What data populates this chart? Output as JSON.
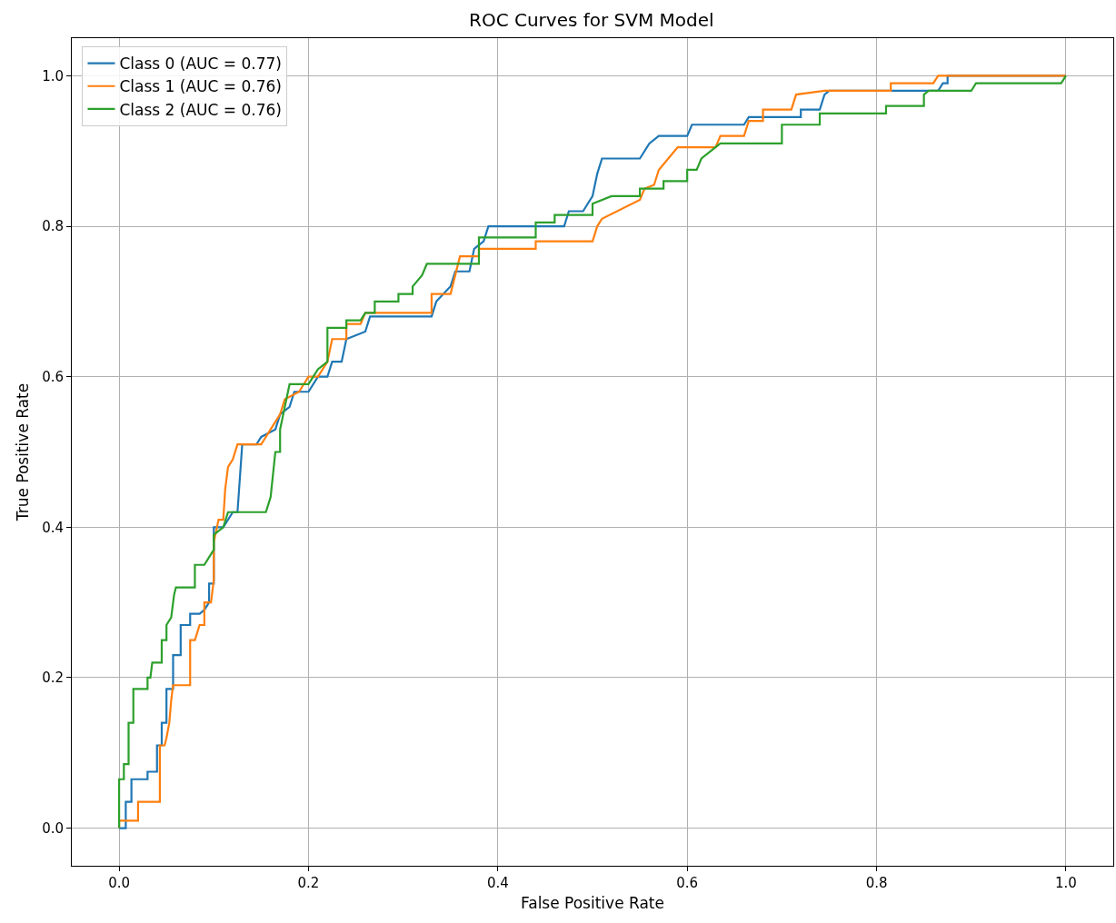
{
  "chart_data": {
    "type": "line",
    "title": "ROC Curves for SVM Model",
    "xlabel": "False Positive Rate",
    "ylabel": "True Positive Rate",
    "xlim": [
      -0.05,
      1.05
    ],
    "ylim": [
      -0.05,
      1.05
    ],
    "xticks": [
      {
        "value": 0,
        "label": "0.0"
      },
      0.2,
      0.4,
      0.6,
      0.8,
      {
        "value": 1,
        "label": "1.0"
      }
    ],
    "yticks": [
      {
        "value": 0,
        "label": "0.0"
      },
      0.2,
      0.4,
      0.6,
      0.8,
      {
        "value": 1,
        "label": "1.0"
      }
    ],
    "grid": true,
    "legend": "top left",
    "line_style": "solid",
    "marker": "none",
    "series": [
      {
        "name": "Class 0 (AUC = 0.77)",
        "color": "#1f77b4",
        "x": [
          0,
          0.007,
          0.007,
          0.013,
          0.013,
          0.03,
          0.03,
          0.04,
          0.04,
          0.045,
          0.045,
          0.05,
          0.05,
          0.057,
          0.057,
          0.065,
          0.065,
          0.075,
          0.075,
          0.085,
          0.09,
          0.095,
          0.095,
          0.1,
          0.1,
          0.11,
          0.12,
          0.125,
          0.13,
          0.145,
          0.15,
          0.165,
          0.17,
          0.18,
          0.185,
          0.2,
          0.21,
          0.22,
          0.225,
          0.235,
          0.24,
          0.26,
          0.265,
          0.33,
          0.335,
          0.35,
          0.355,
          0.37,
          0.375,
          0.385,
          0.39,
          0.47,
          0.475,
          0.49,
          0.5,
          0.505,
          0.51,
          0.55,
          0.56,
          0.57,
          0.6,
          0.605,
          0.66,
          0.665,
          0.72,
          0.72,
          0.74,
          0.745,
          0.75,
          0.865,
          0.87,
          0.875,
          0.875,
          1.0
        ],
        "values": [
          0,
          0,
          0.035,
          0.035,
          0.065,
          0.065,
          0.075,
          0.075,
          0.11,
          0.11,
          0.14,
          0.14,
          0.185,
          0.185,
          0.23,
          0.23,
          0.27,
          0.27,
          0.285,
          0.285,
          0.29,
          0.3,
          0.325,
          0.325,
          0.4,
          0.4,
          0.42,
          0.42,
          0.51,
          0.51,
          0.52,
          0.53,
          0.55,
          0.56,
          0.58,
          0.58,
          0.6,
          0.6,
          0.62,
          0.62,
          0.65,
          0.66,
          0.68,
          0.68,
          0.7,
          0.72,
          0.74,
          0.74,
          0.77,
          0.78,
          0.8,
          0.8,
          0.82,
          0.82,
          0.84,
          0.87,
          0.89,
          0.89,
          0.91,
          0.92,
          0.92,
          0.935,
          0.935,
          0.945,
          0.945,
          0.955,
          0.955,
          0.975,
          0.98,
          0.98,
          0.99,
          0.99,
          1.0,
          1.0
        ]
      },
      {
        "name": "Class 1 (AUC = 0.76)",
        "color": "#ff7f0e",
        "x": [
          0,
          0,
          0.02,
          0.02,
          0.043,
          0.043,
          0.048,
          0.05,
          0.053,
          0.055,
          0.057,
          0.075,
          0.075,
          0.08,
          0.085,
          0.09,
          0.09,
          0.097,
          0.1,
          0.1,
          0.105,
          0.11,
          0.112,
          0.115,
          0.12,
          0.125,
          0.15,
          0.16,
          0.17,
          0.175,
          0.19,
          0.2,
          0.21,
          0.22,
          0.225,
          0.24,
          0.24,
          0.255,
          0.26,
          0.33,
          0.33,
          0.35,
          0.355,
          0.36,
          0.38,
          0.38,
          0.44,
          0.44,
          0.5,
          0.505,
          0.51,
          0.55,
          0.555,
          0.565,
          0.57,
          0.58,
          0.59,
          0.63,
          0.635,
          0.66,
          0.665,
          0.68,
          0.68,
          0.71,
          0.715,
          0.745,
          0.815,
          0.815,
          0.86,
          0.865,
          1.0
        ],
        "values": [
          0,
          0.01,
          0.01,
          0.035,
          0.035,
          0.11,
          0.11,
          0.12,
          0.14,
          0.17,
          0.19,
          0.19,
          0.25,
          0.25,
          0.27,
          0.27,
          0.3,
          0.3,
          0.33,
          0.38,
          0.41,
          0.41,
          0.45,
          0.48,
          0.49,
          0.51,
          0.51,
          0.53,
          0.55,
          0.57,
          0.58,
          0.6,
          0.6,
          0.62,
          0.65,
          0.65,
          0.67,
          0.67,
          0.685,
          0.685,
          0.71,
          0.71,
          0.735,
          0.76,
          0.76,
          0.77,
          0.77,
          0.78,
          0.78,
          0.8,
          0.81,
          0.835,
          0.85,
          0.855,
          0.875,
          0.89,
          0.905,
          0.905,
          0.92,
          0.92,
          0.94,
          0.94,
          0.955,
          0.955,
          0.975,
          0.98,
          0.98,
          0.99,
          0.99,
          1.0,
          1.0
        ]
      },
      {
        "name": "Class 2 (AUC = 0.76)",
        "color": "#2ca02c",
        "x": [
          0,
          0,
          0.005,
          0.005,
          0.01,
          0.01,
          0.015,
          0.015,
          0.03,
          0.03,
          0.033,
          0.035,
          0.045,
          0.045,
          0.05,
          0.05,
          0.055,
          0.058,
          0.06,
          0.08,
          0.08,
          0.09,
          0.095,
          0.1,
          0.1,
          0.11,
          0.115,
          0.155,
          0.16,
          0.165,
          0.17,
          0.17,
          0.175,
          0.18,
          0.2,
          0.205,
          0.21,
          0.22,
          0.22,
          0.24,
          0.24,
          0.255,
          0.26,
          0.27,
          0.27,
          0.295,
          0.295,
          0.31,
          0.31,
          0.32,
          0.325,
          0.38,
          0.38,
          0.44,
          0.44,
          0.46,
          0.46,
          0.5,
          0.5,
          0.52,
          0.55,
          0.55,
          0.575,
          0.575,
          0.6,
          0.6,
          0.61,
          0.615,
          0.625,
          0.635,
          0.7,
          0.7,
          0.74,
          0.74,
          0.81,
          0.81,
          0.85,
          0.85,
          0.855,
          0.9,
          0.905,
          0.995,
          1.0
        ],
        "values": [
          0,
          0.065,
          0.065,
          0.085,
          0.085,
          0.14,
          0.14,
          0.185,
          0.185,
          0.2,
          0.2,
          0.22,
          0.22,
          0.25,
          0.25,
          0.27,
          0.28,
          0.31,
          0.32,
          0.32,
          0.35,
          0.35,
          0.36,
          0.37,
          0.39,
          0.4,
          0.42,
          0.42,
          0.44,
          0.5,
          0.5,
          0.53,
          0.56,
          0.59,
          0.59,
          0.6,
          0.61,
          0.62,
          0.665,
          0.665,
          0.675,
          0.675,
          0.685,
          0.685,
          0.7,
          0.7,
          0.71,
          0.71,
          0.72,
          0.735,
          0.75,
          0.75,
          0.785,
          0.785,
          0.805,
          0.805,
          0.815,
          0.815,
          0.83,
          0.84,
          0.84,
          0.85,
          0.85,
          0.86,
          0.86,
          0.875,
          0.875,
          0.89,
          0.9,
          0.91,
          0.91,
          0.935,
          0.935,
          0.95,
          0.95,
          0.96,
          0.96,
          0.975,
          0.98,
          0.98,
          0.99,
          0.99,
          1.0
        ]
      }
    ]
  }
}
